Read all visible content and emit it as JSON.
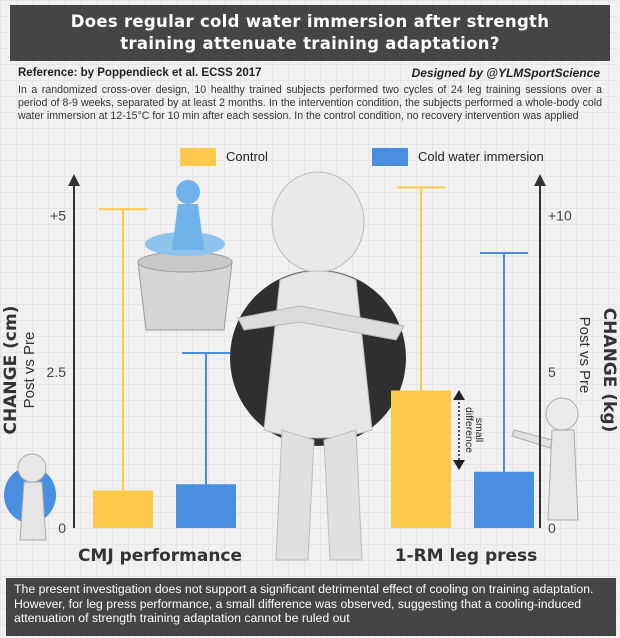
{
  "title": {
    "line1": "Does regular cold water immersion after strength",
    "line2": "training attenuate training adaptation?"
  },
  "reference": "Reference: by Poppendieck et al. ECSS 2017",
  "designed_by": "Designed by @YLMSportScience",
  "description": "In a randomized cross-over design, 10 healthy trained subjects performed two cycles of 24 leg training sessions over a period of 8-9 weeks, separated by at least 2 months. In the intervention condition, the subjects performed a whole-body cold water immersion at 12-15°C for 10 min after each session. In the control condition, no recovery intervention was applied",
  "legend": {
    "control": "Control",
    "cwi": "Cold water immersion"
  },
  "annotation": {
    "line1": "small",
    "line2": "difference"
  },
  "conclusion": "The present investigation does not support a significant detrimental effect of cooling on training adaptation. However, for leg press performance, a small difference was observed, suggesting that a cooling-induced attenuation of strength training adaptation cannot be ruled out",
  "colors": {
    "control": "#fdc94b",
    "cwi": "#4a8ee2",
    "dark_bar": "#454545"
  },
  "chart_data": [
    {
      "type": "bar",
      "title": "CMJ performance",
      "ylabel": "CHANGE (cm)",
      "ylabel_sub": "Post vs Pre",
      "ylim": [
        0,
        5.6
      ],
      "yticks": [
        0,
        2.5,
        5
      ],
      "ytick_labels": [
        "0",
        "2.5",
        "+5"
      ],
      "categories": [
        "Control",
        "Cold water immersion"
      ],
      "values": [
        0.6,
        0.7
      ],
      "error_upper": [
        5.1,
        2.8
      ]
    },
    {
      "type": "bar",
      "title": "1-RM leg press",
      "ylabel": "CHANGE (kg)",
      "ylabel_sub": "Post vs Pre",
      "ylim": [
        0,
        11.2
      ],
      "yticks": [
        0,
        5,
        10
      ],
      "ytick_labels": [
        "0",
        "5",
        "+10"
      ],
      "categories": [
        "Control",
        "Cold water immersion"
      ],
      "values": [
        4.4,
        1.8
      ],
      "error_upper": [
        10.9,
        8.8
      ]
    }
  ]
}
